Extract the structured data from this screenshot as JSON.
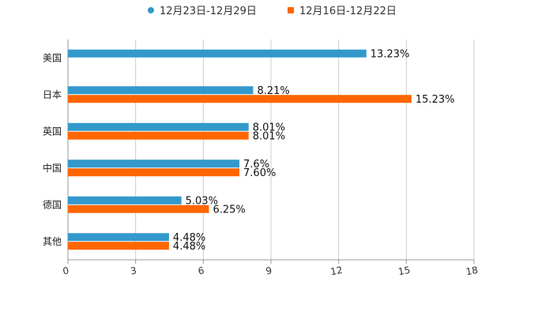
{
  "chart_data": {
    "type": "bar",
    "orientation": "horizontal",
    "title": "",
    "xlabel": "",
    "ylabel": "",
    "xlim": [
      0,
      18
    ],
    "x_ticks": [
      "0",
      "3",
      "6",
      "9",
      "12",
      "15",
      "18"
    ],
    "grid": true,
    "legend_position": "top-center",
    "categories": [
      "美国",
      "日本",
      "英国",
      "中国",
      "德国",
      "其他"
    ],
    "series": [
      {
        "name": "12月23日-12月29日",
        "color": "#3399cc",
        "values": [
          13.23,
          8.21,
          8.01,
          7.6,
          5.03,
          4.48
        ],
        "labels": [
          "13.23%",
          "8.21%",
          "8.01%",
          "7.6%",
          "5.03%",
          "4.48%"
        ]
      },
      {
        "name": "12月16日-12月22日",
        "color": "#ff6600",
        "values": [
          null,
          15.23,
          8.01,
          7.6,
          6.25,
          4.48
        ],
        "labels": [
          null,
          "15.23%",
          "8.01%",
          "7.60%",
          "6.25%",
          "4.48%"
        ]
      }
    ]
  }
}
